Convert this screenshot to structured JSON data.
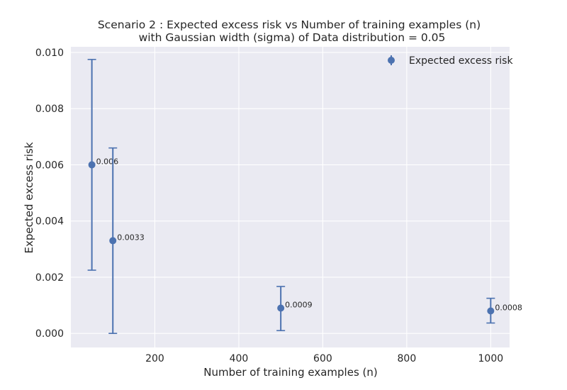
{
  "chart_data": {
    "type": "scatter",
    "title": "Scenario 2 : Expected excess risk vs Number of training examples (n)",
    "subtitle": "with Gaussian width (sigma) of Data distribution = 0.05",
    "xlabel": "Number of training examples (n)",
    "ylabel": "Expected excess risk",
    "xlim": [
      0,
      1045
    ],
    "ylim": [
      -0.0005,
      0.0102
    ],
    "xticks": [
      200,
      400,
      600,
      800,
      1000
    ],
    "xtick_labels": [
      "200",
      "400",
      "600",
      "800",
      "1000"
    ],
    "yticks": [
      0.0,
      0.002,
      0.004,
      0.006,
      0.008,
      0.01
    ],
    "ytick_labels": [
      "0.000",
      "0.002",
      "0.004",
      "0.006",
      "0.008",
      "0.010"
    ],
    "grid": true,
    "legend_position": "top-right",
    "series": [
      {
        "name": "Expected excess risk",
        "color": "#4c72b0",
        "points": [
          {
            "x": 50,
            "y": 0.006,
            "err_low": 0.00225,
            "err_high": 0.00975,
            "label": "0.006"
          },
          {
            "x": 100,
            "y": 0.0033,
            "err_low": 0.0,
            "err_high": 0.0066,
            "label": "0.0033"
          },
          {
            "x": 500,
            "y": 0.0009,
            "err_low": 0.0001,
            "err_high": 0.00167,
            "label": "0.0009"
          },
          {
            "x": 1000,
            "y": 0.0008,
            "err_low": 0.00037,
            "err_high": 0.00125,
            "label": "0.0008"
          }
        ]
      }
    ]
  },
  "style": {
    "plot_background": "#eaeaf2",
    "grid_color": "#ffffff",
    "marker_color": "#4c72b0",
    "text_color": "#262626"
  }
}
